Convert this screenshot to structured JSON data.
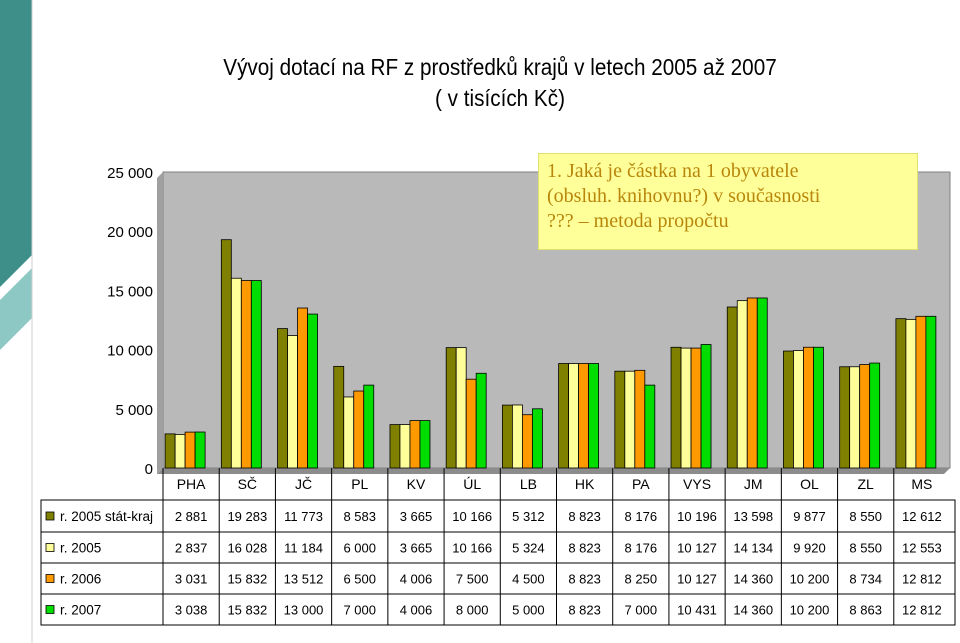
{
  "title": {
    "line1": "Vývoj dotací na RF z prostředků krajů v letech 2005 až 2007",
    "line2": "( v tisících Kč)"
  },
  "note": {
    "line1": "1. Jaká je částka na 1 obyvatele",
    "line2": "(obsluh. knihovnu?) v současnosti",
    "line3": "??? – metoda propočtu"
  },
  "colors": {
    "plot_bg": "#b9b9b9",
    "teal": "#3e8e8a",
    "teal_light": "#8ec8c4"
  },
  "chart_data": {
    "type": "bar",
    "categories": [
      "PHA",
      "SČ",
      "JČ",
      "PL",
      "KV",
      "ÚL",
      "LB",
      "HK",
      "PA",
      "VYS",
      "JM",
      "OL",
      "ZL",
      "MS"
    ],
    "ylim": [
      0,
      25000
    ],
    "yticks": [
      0,
      5000,
      10000,
      15000,
      20000,
      25000
    ],
    "ytick_labels": [
      "0",
      "5 000",
      "10 000",
      "15 000",
      "20 000",
      "25 000"
    ],
    "grid": false,
    "legend": "table-left",
    "series": [
      {
        "name": "r. 2005 stát-kraj",
        "color": "#808000",
        "values": [
          2881,
          19283,
          11773,
          8583,
          3665,
          10166,
          5312,
          8823,
          8176,
          10196,
          13598,
          9877,
          8550,
          12612
        ],
        "labels": [
          "2 881",
          "19 283",
          "11 773",
          "8 583",
          "3 665",
          "10 166",
          "5 312",
          "8 823",
          "8 176",
          "10 196",
          "13 598",
          "9 877",
          "8 550",
          "12 612"
        ]
      },
      {
        "name": "r. 2005",
        "color": "#ffff99",
        "values": [
          2837,
          16028,
          11184,
          6000,
          3665,
          10166,
          5324,
          8823,
          8176,
          10127,
          14134,
          9920,
          8550,
          12553
        ],
        "labels": [
          "2 837",
          "16 028",
          "11 184",
          "6 000",
          "3 665",
          "10 166",
          "5 324",
          "8 823",
          "8 176",
          "10 127",
          "14 134",
          "9 920",
          "8 550",
          "12 553"
        ]
      },
      {
        "name": "r. 2006",
        "color": "#ff9900",
        "values": [
          3031,
          15832,
          13512,
          6500,
          4006,
          7500,
          4500,
          8823,
          8250,
          10127,
          14360,
          10200,
          8734,
          12812
        ],
        "labels": [
          "3 031",
          "15 832",
          "13 512",
          "6 500",
          "4 006",
          "7 500",
          "4 500",
          "8 823",
          "8 250",
          "10 127",
          "14 360",
          "10 200",
          "8 734",
          "12 812"
        ]
      },
      {
        "name": "r. 2007",
        "color": "#00dd00",
        "values": [
          3038,
          15832,
          13000,
          7000,
          4006,
          8000,
          5000,
          8823,
          7000,
          10431,
          14360,
          10200,
          8863,
          12812
        ],
        "labels": [
          "3 038",
          "15 832",
          "13 000",
          "7 000",
          "4 006",
          "8 000",
          "5 000",
          "8 823",
          "7 000",
          "10 431",
          "14 360",
          "10 200",
          "8 863",
          "12 812"
        ]
      }
    ]
  }
}
